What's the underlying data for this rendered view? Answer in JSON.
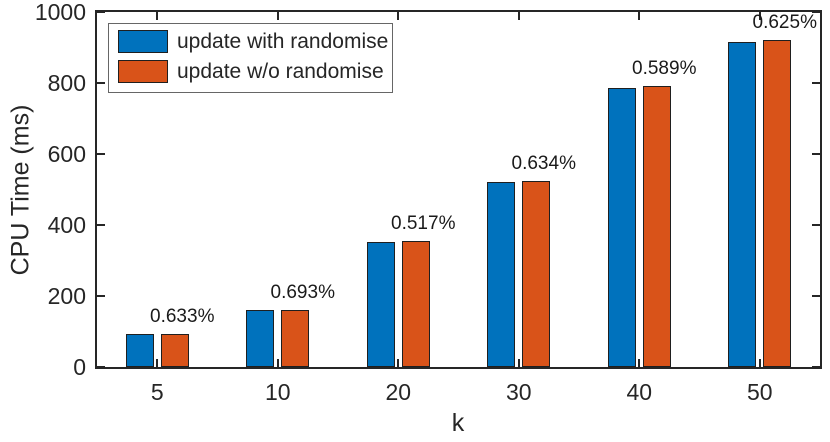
{
  "chart_data": {
    "type": "bar",
    "title": "",
    "xlabel": "k",
    "ylabel": "CPU Time (ms)",
    "categories": [
      "5",
      "10",
      "20",
      "30",
      "40",
      "50"
    ],
    "series": [
      {
        "name": "update with randomise",
        "color": "#0072BD",
        "values": [
          93,
          160,
          353,
          520,
          786,
          915
        ]
      },
      {
        "name": "update w/o randomise",
        "color": "#D95319",
        "values": [
          94,
          161,
          355,
          523,
          791,
          921
        ]
      }
    ],
    "bar_labels": [
      "0.633%",
      "0.693%",
      "0.517%",
      "0.634%",
      "0.589%",
      "0.625%"
    ],
    "ylim": [
      0,
      1000
    ],
    "yticks": [
      0,
      200,
      400,
      600,
      800,
      1000
    ],
    "grid": false,
    "legend_position": "top-left",
    "colors": {
      "axis": "#262626",
      "text": "#1a1a1a",
      "background": "#ffffff"
    }
  }
}
